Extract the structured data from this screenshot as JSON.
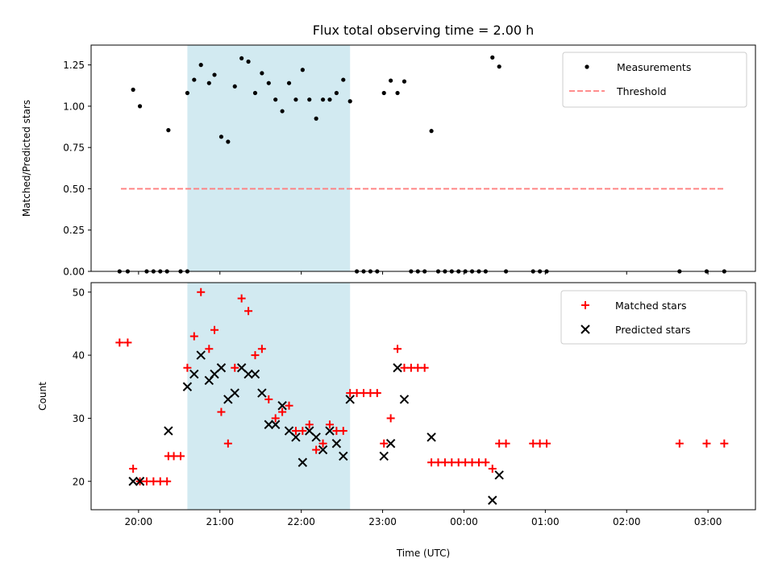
{
  "title": "Flux total observing time = 2.00 h",
  "xlabel": "Time (UTC)",
  "colors": {
    "measure": "#000000",
    "threshold": "#ff7f7f",
    "matched": "#ff0000",
    "predicted": "#000000",
    "span": "#add8e6"
  },
  "chart_data": [
    {
      "type": "scatter",
      "panel": "top",
      "ylabel": "Matched/Predicted stars",
      "ylim": [
        0,
        1.37
      ],
      "xlim": [
        "19:25",
        "03:35"
      ],
      "yticks": [
        "0.00",
        "0.25",
        "0.50",
        "0.75",
        "1.00",
        "1.25"
      ],
      "xticks": [],
      "highlight_span": {
        "from": "20:36",
        "to": "22:36"
      },
      "legend": {
        "position": "top-right",
        "entries": [
          "Measurements",
          "Threshold"
        ]
      },
      "threshold": {
        "name": "Threshold",
        "y": 0.5,
        "x_from": "19:47",
        "x_to": "03:12"
      },
      "series": [
        {
          "name": "Measurements",
          "points": [
            [
              "19:46",
              0
            ],
            [
              "19:52",
              0
            ],
            [
              "19:56",
              1.1
            ],
            [
              "20:01",
              1.0
            ],
            [
              "20:06",
              0
            ],
            [
              "20:11",
              0
            ],
            [
              "20:16",
              0
            ],
            [
              "20:21",
              0
            ],
            [
              "20:22",
              0
            ],
            [
              "20:21",
              0
            ],
            [
              "20:22",
              0
            ],
            [
              "20:21",
              0
            ],
            [
              "20:22",
              0
            ],
            [
              "20:22",
              0
            ],
            [
              "20:22",
              0
            ],
            [
              "20:22",
              0
            ],
            [
              "20:22",
              0
            ],
            [
              "20:22",
              0
            ],
            [
              "20:22",
              0
            ],
            [
              "20:23",
              0
            ],
            [
              "20:22",
              0
            ],
            [
              "20:23",
              0
            ],
            [
              "20:22",
              0
            ],
            [
              "20:22",
              0
            ],
            [
              "20:22",
              0
            ],
            [
              "20:22",
              0
            ],
            [
              "20:22",
              0
            ],
            [
              "20:22",
              0
            ],
            [
              "20:22",
              0
            ],
            [
              "20:22",
              0
            ],
            [
              "20:22",
              0
            ],
            [
              "20:22",
              0
            ],
            [
              "20:22",
              0
            ],
            [
              "20:22",
              0
            ],
            [
              "20:22",
              0
            ],
            [
              "20:22",
              0
            ],
            [
              "20:22",
              0
            ],
            [
              "20:22",
              0
            ],
            [
              "20:22",
              0
            ],
            [
              "20:22",
              0
            ],
            [
              "20:22",
              0
            ],
            [
              "20:22",
              0
            ],
            [
              "20:22",
              0
            ],
            [
              "20:22",
              0
            ],
            [
              "20:22",
              0
            ],
            [
              "20:22",
              0
            ],
            [
              "20:22",
              0
            ],
            [
              "20:22",
              0
            ],
            [
              "20:22",
              0
            ],
            [
              "20:22",
              0
            ],
            [
              "20:22",
              0
            ],
            [
              "20:22",
              0
            ],
            [
              "20:22",
              0
            ],
            [
              "20:22",
              0
            ],
            [
              "20:22",
              0
            ],
            [
              "20:22",
              0
            ],
            [
              "20:22",
              0
            ],
            [
              "20:22",
              0
            ],
            [
              "20:22",
              0
            ],
            [
              "20:22",
              0
            ],
            [
              "20:22",
              0
            ],
            [
              "20:22",
              0
            ],
            [
              "20:22",
              0
            ],
            [
              "20:22",
              0
            ],
            [
              "20:22",
              0
            ],
            [
              "20:22",
              0
            ],
            [
              "20:22",
              0
            ],
            [
              "20:22",
              0
            ],
            [
              "20:22",
              0
            ],
            [
              "20:22",
              0
            ],
            [
              "20:22",
              0
            ],
            [
              "20:22",
              0
            ],
            [
              "20:22",
              0
            ],
            [
              "20:22",
              0
            ],
            [
              "20:22",
              0
            ],
            [
              "20:22",
              0
            ],
            [
              "20:22",
              0
            ],
            [
              "20:22",
              0
            ],
            [
              "20:22",
              0
            ],
            [
              "20:22",
              0
            ],
            [
              "20:22",
              0
            ],
            [
              "20:22",
              0
            ]
          ]
        }
      ]
    },
    {
      "type": "scatter",
      "panel": "bottom",
      "ylabel": "Count",
      "ylim": [
        15.5,
        51.5
      ],
      "xlim": [
        "19:25",
        "03:35"
      ],
      "yticks": [
        "20",
        "30",
        "40",
        "50"
      ],
      "xticks": [
        "20:00",
        "21:00",
        "22:00",
        "23:00",
        "00:00",
        "01:00",
        "02:00",
        "03:00"
      ],
      "highlight_span": {
        "from": "20:36",
        "to": "22:36"
      },
      "legend": {
        "position": "top-right",
        "entries": [
          "Matched stars",
          "Predicted stars"
        ]
      },
      "series": [
        {
          "name": "Matched stars",
          "marker": "+",
          "points": [
            [
              "19:46",
              42
            ],
            [
              "19:52",
              42
            ],
            [
              "19:56",
              22
            ],
            [
              "20:01",
              20
            ],
            [
              "20:06",
              20
            ],
            [
              "20:11",
              20
            ],
            [
              "20:16",
              20
            ],
            [
              "20:21",
              20
            ],
            [
              "20:22",
              24
            ],
            [
              "20:26",
              24
            ],
            [
              "20:31",
              24
            ],
            [
              "20:36",
              38
            ],
            [
              "20:41",
              43
            ],
            [
              "20:46",
              50
            ],
            [
              "20:52",
              41
            ],
            [
              "20:56",
              44
            ],
            [
              "21:01",
              31
            ],
            [
              "21:06",
              26
            ],
            [
              "21:11",
              38
            ],
            [
              "21:16",
              49
            ],
            [
              "21:21",
              47
            ],
            [
              "21:26",
              40
            ],
            [
              "21:31",
              41
            ],
            [
              "21:36",
              33
            ],
            [
              "21:41",
              30
            ],
            [
              "21:46",
              31
            ],
            [
              "21:51",
              32
            ],
            [
              "21:56",
              28
            ],
            [
              "22:01",
              28
            ],
            [
              "22:06",
              29
            ],
            [
              "22:11",
              25
            ],
            [
              "22:16",
              26
            ],
            [
              "22:21",
              29
            ],
            [
              "22:26",
              28
            ],
            [
              "22:31",
              28
            ],
            [
              "22:36",
              34
            ],
            [
              "22:41",
              34
            ],
            [
              "22:46",
              34
            ],
            [
              "22:51",
              34
            ],
            [
              "22:56",
              34
            ],
            [
              "23:01",
              26
            ],
            [
              "23:06",
              30
            ],
            [
              "23:11",
              41
            ],
            [
              "23:16",
              38
            ],
            [
              "23:21",
              38
            ],
            [
              "23:26",
              38
            ],
            [
              "23:31",
              38
            ],
            [
              "23:36",
              23
            ],
            [
              "23:41",
              23
            ],
            [
              "23:46",
              23
            ],
            [
              "23:51",
              23
            ],
            [
              "23:56",
              23
            ],
            [
              "00:01",
              23
            ],
            [
              "00:06",
              23
            ],
            [
              "00:11",
              23
            ],
            [
              "00:16",
              23
            ],
            [
              "00:21",
              22
            ],
            [
              "00:26",
              26
            ],
            [
              "00:31",
              26
            ],
            [
              "00:51",
              26
            ],
            [
              "00:56",
              26
            ],
            [
              "01:01",
              26
            ],
            [
              "02:39",
              26
            ],
            [
              "02:59",
              26
            ],
            [
              "03:12",
              26
            ]
          ]
        },
        {
          "name": "Predicted stars",
          "marker": "x",
          "points": [
            [
              "19:56",
              20
            ],
            [
              "20:01",
              20
            ],
            [
              "20:22",
              28
            ],
            [
              "20:36",
              35
            ],
            [
              "20:41",
              37
            ],
            [
              "20:46",
              40
            ],
            [
              "20:52",
              36
            ],
            [
              "20:56",
              37
            ],
            [
              "21:01",
              38
            ],
            [
              "21:06",
              33
            ],
            [
              "21:11",
              34
            ],
            [
              "21:16",
              38
            ],
            [
              "21:21",
              37
            ],
            [
              "21:26",
              37
            ],
            [
              "21:31",
              34
            ],
            [
              "21:36",
              29
            ],
            [
              "21:41",
              29
            ],
            [
              "21:46",
              32
            ],
            [
              "21:51",
              28
            ],
            [
              "21:56",
              27
            ],
            [
              "22:01",
              23
            ],
            [
              "22:06",
              28
            ],
            [
              "22:11",
              27
            ],
            [
              "22:16",
              25
            ],
            [
              "22:21",
              28
            ],
            [
              "22:26",
              26
            ],
            [
              "22:31",
              24
            ],
            [
              "22:36",
              33
            ],
            [
              "23:01",
              24
            ],
            [
              "23:06",
              26
            ],
            [
              "23:11",
              38
            ],
            [
              "23:16",
              33
            ],
            [
              "23:36",
              27
            ],
            [
              "00:21",
              17
            ],
            [
              "00:26",
              21
            ]
          ]
        }
      ]
    }
  ]
}
